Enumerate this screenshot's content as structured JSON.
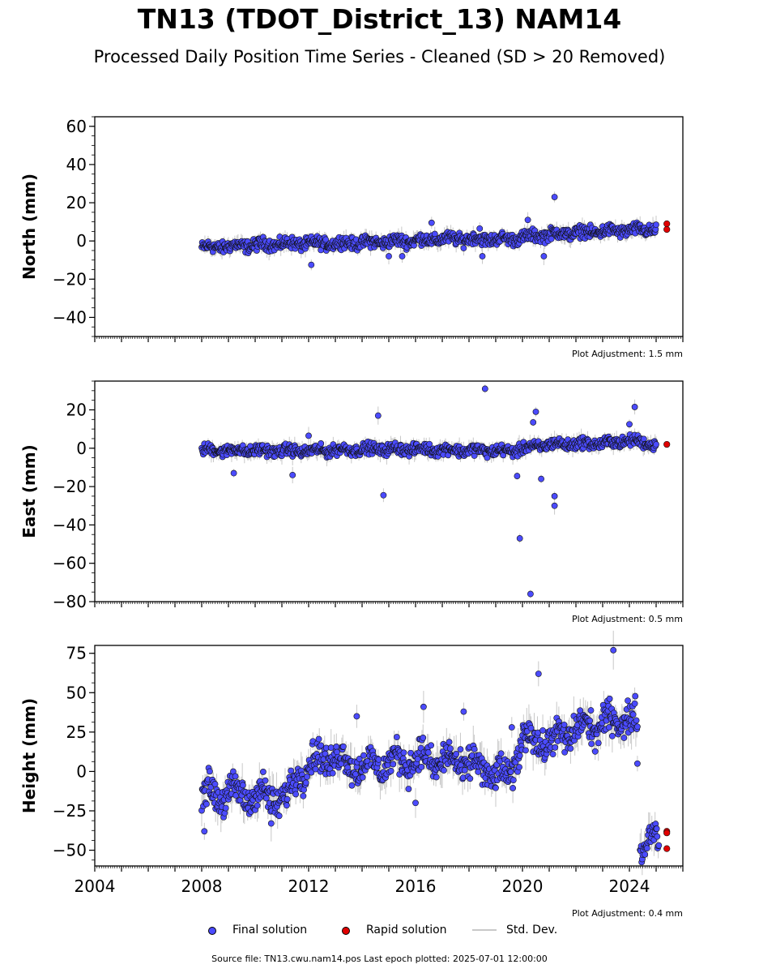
{
  "title": "TN13 (TDOT_District_13) NAM14",
  "subtitle": "Processed Daily Position Time Series - Cleaned (SD > 20 Removed)",
  "legend": {
    "final": "Final solution",
    "rapid": "Rapid solution",
    "std": "Std. Dev."
  },
  "footer": "Source file: TN13.cwu.nam14.pos  Last epoch plotted: 2025-07-01 12:00:00",
  "colors": {
    "final": "#4b4bff",
    "rapid": "#e00000",
    "std": "#c8c8c8"
  },
  "chart_data": [
    {
      "type": "scatter",
      "ylabel": "North (mm)",
      "ylim": [
        -50,
        65
      ],
      "yticks": [
        -40,
        -20,
        0,
        20,
        40,
        60
      ],
      "ytick_labels": [
        "−40",
        "−20",
        "0",
        "20",
        "40",
        "60"
      ],
      "xlim": [
        2004,
        2026
      ],
      "adjustment": "Plot Adjustment: 1.5 mm",
      "trend": [
        [
          2008.0,
          -3.5
        ],
        [
          2011.0,
          -1.5
        ],
        [
          2014.0,
          -1.0
        ],
        [
          2017.0,
          1.0
        ],
        [
          2019.5,
          1.0
        ],
        [
          2021.0,
          3.5
        ],
        [
          2023.0,
          5.0
        ],
        [
          2025.0,
          6.0
        ]
      ],
      "outliers": [
        [
          2012.1,
          -12.5
        ],
        [
          2015.0,
          -8.0
        ],
        [
          2015.5,
          -8.0
        ],
        [
          2016.6,
          9.5
        ],
        [
          2018.5,
          -8.0
        ],
        [
          2021.2,
          23.0
        ],
        [
          2020.2,
          11.0
        ],
        [
          2020.8,
          -8.0
        ],
        [
          2018.4,
          6.5
        ]
      ],
      "rapid": [
        [
          2025.4,
          9.0
        ],
        [
          2025.4,
          6.0
        ]
      ]
    },
    {
      "type": "scatter",
      "ylabel": "East (mm)",
      "ylim": [
        -80,
        35
      ],
      "yticks": [
        -80,
        -60,
        -40,
        -20,
        0,
        20
      ],
      "ytick_labels": [
        "−80",
        "−60",
        "−40",
        "−20",
        "0",
        "20"
      ],
      "xlim": [
        2004,
        2026
      ],
      "adjustment": "Plot Adjustment: 0.5 mm",
      "trend": [
        [
          2008.0,
          -1.0
        ],
        [
          2012.0,
          -1.5
        ],
        [
          2014.0,
          -0.5
        ],
        [
          2016.0,
          -0.5
        ],
        [
          2019.5,
          -1.5
        ],
        [
          2021.0,
          2.0
        ],
        [
          2023.0,
          2.5
        ],
        [
          2024.0,
          4.0
        ],
        [
          2025.0,
          2.0
        ]
      ],
      "outliers": [
        [
          2014.6,
          17.0
        ],
        [
          2014.8,
          -24.5
        ],
        [
          2018.6,
          31.0
        ],
        [
          2019.8,
          -14.5
        ],
        [
          2019.9,
          -47.0
        ],
        [
          2020.3,
          -76.0
        ],
        [
          2020.4,
          13.5
        ],
        [
          2020.5,
          19.0
        ],
        [
          2020.7,
          -16.0
        ],
        [
          2021.2,
          -25.0
        ],
        [
          2021.2,
          -30.0
        ],
        [
          2024.2,
          21.5
        ],
        [
          2009.2,
          -13.0
        ],
        [
          2011.4,
          -14.0
        ],
        [
          2012.0,
          6.5
        ],
        [
          2024.0,
          12.5
        ]
      ],
      "rapid": [
        [
          2025.4,
          2.0
        ]
      ]
    },
    {
      "type": "scatter",
      "ylabel": "Height (mm)",
      "ylim": [
        -60,
        80
      ],
      "yticks": [
        -50,
        -25,
        0,
        25,
        50,
        75
      ],
      "ytick_labels": [
        "−50",
        "−25",
        "0",
        "25",
        "50",
        "75"
      ],
      "xlim": [
        2004,
        2026
      ],
      "xticks": [
        2004,
        2008,
        2012,
        2016,
        2020,
        2024
      ],
      "xtick_labels": [
        "2004",
        "2008",
        "2012",
        "2016",
        "2020",
        "2024"
      ],
      "adjustment": "Plot Adjustment: 0.4 mm",
      "trend": [
        [
          2008.0,
          -14.0
        ],
        [
          2010.0,
          -15.0
        ],
        [
          2011.2,
          -18.0
        ],
        [
          2011.6,
          0.0
        ],
        [
          2012.6,
          10.0
        ],
        [
          2014.0,
          3.0
        ],
        [
          2016.0,
          8.0
        ],
        [
          2018.0,
          5.0
        ],
        [
          2019.5,
          -5.0
        ],
        [
          2020.0,
          22.0
        ],
        [
          2021.0,
          18.0
        ],
        [
          2022.0,
          27.0
        ],
        [
          2023.0,
          30.0
        ],
        [
          2024.0,
          35.0
        ],
        [
          2024.3,
          30.0
        ]
      ],
      "outliers": [
        [
          2008.1,
          -38.0
        ],
        [
          2016.3,
          41.0
        ],
        [
          2017.8,
          38.0
        ],
        [
          2020.6,
          62.0
        ],
        [
          2023.4,
          77.0
        ],
        [
          2024.3,
          5.0
        ],
        [
          2013.8,
          35.0
        ],
        [
          2019.6,
          28.0
        ],
        [
          2016.0,
          -20.0
        ],
        [
          2010.6,
          -33.0
        ]
      ],
      "post_segment": [
        [
          2024.5,
          -52.0
        ],
        [
          2024.7,
          -42.0
        ],
        [
          2024.9,
          -35.0
        ],
        [
          2025.1,
          -44.0
        ]
      ],
      "rapid": [
        [
          2025.4,
          -38.0
        ],
        [
          2025.4,
          -49.0
        ],
        [
          2025.4,
          -39.0
        ]
      ]
    }
  ]
}
